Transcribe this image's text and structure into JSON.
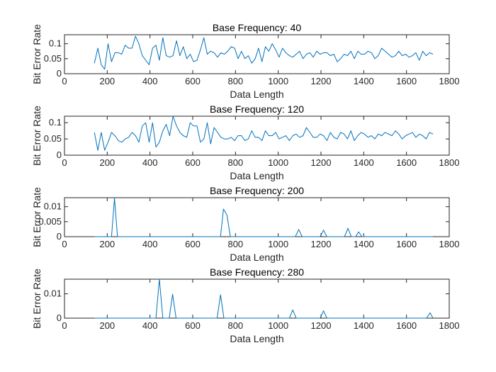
{
  "chart_data": [
    {
      "type": "line",
      "title": "Base Frequency: 40",
      "xlabel": "Data Length",
      "ylabel": "Bit Error Rate",
      "xlim": [
        0,
        1800
      ],
      "ylim": [
        0,
        0.13
      ],
      "xticks": [
        0,
        200,
        400,
        600,
        800,
        1000,
        1200,
        1400,
        1600,
        1800
      ],
      "xtick_labels": [
        "0",
        "200",
        "400",
        "600",
        "800",
        "1000",
        "1200",
        "1400",
        "1600",
        "1800"
      ],
      "yticks": [
        0,
        0.05,
        0.1
      ],
      "ytick_labels": [
        "0",
        "0.05",
        "0.1"
      ],
      "color": "#0072BD",
      "series": [
        {
          "x": [
            140,
            156,
            172,
            188,
            204,
            220,
            236,
            252,
            268,
            284,
            300,
            316,
            332,
            348,
            364,
            380,
            396,
            412,
            428,
            444,
            460,
            476,
            492,
            508,
            524,
            540,
            556,
            572,
            588,
            604,
            620,
            636,
            652,
            668,
            684,
            700,
            716,
            732,
            748,
            764,
            780,
            796,
            812,
            828,
            844,
            860,
            876,
            892,
            908,
            924,
            940,
            956,
            972,
            988,
            1004,
            1020,
            1036,
            1052,
            1068,
            1084,
            1100,
            1116,
            1132,
            1148,
            1164,
            1180,
            1196,
            1212,
            1228,
            1244,
            1260,
            1276,
            1292,
            1308,
            1324,
            1340,
            1356,
            1372,
            1388,
            1404,
            1420,
            1436,
            1452,
            1468,
            1484,
            1500,
            1516,
            1532,
            1548,
            1564,
            1580,
            1596,
            1612,
            1628,
            1644,
            1660,
            1676,
            1692,
            1708,
            1724
          ],
          "values": [
            0.035,
            0.085,
            0.03,
            0.015,
            0.1,
            0.04,
            0.07,
            0.07,
            0.065,
            0.095,
            0.085,
            0.085,
            0.125,
            0.1,
            0.06,
            0.045,
            0.03,
            0.085,
            0.095,
            0.045,
            0.12,
            0.06,
            0.055,
            0.06,
            0.11,
            0.06,
            0.09,
            0.05,
            0.065,
            0.04,
            0.045,
            0.08,
            0.12,
            0.065,
            0.075,
            0.07,
            0.055,
            0.07,
            0.065,
            0.075,
            0.09,
            0.085,
            0.05,
            0.075,
            0.05,
            0.06,
            0.035,
            0.05,
            0.085,
            0.04,
            0.09,
            0.075,
            0.1,
            0.08,
            0.055,
            0.085,
            0.07,
            0.06,
            0.055,
            0.065,
            0.075,
            0.05,
            0.065,
            0.07,
            0.055,
            0.075,
            0.065,
            0.07,
            0.07,
            0.06,
            0.065,
            0.04,
            0.05,
            0.065,
            0.06,
            0.075,
            0.05,
            0.075,
            0.065,
            0.065,
            0.075,
            0.07,
            0.05,
            0.06,
            0.085,
            0.075,
            0.065,
            0.055,
            0.06,
            0.075,
            0.06,
            0.065,
            0.055,
            0.06,
            0.07,
            0.045,
            0.075,
            0.06,
            0.07,
            0.065
          ]
        }
      ]
    },
    {
      "type": "line",
      "title": "Base Frequency: 120",
      "xlabel": "Data Length",
      "ylabel": "Bit Error Rate",
      "xlim": [
        0,
        1800
      ],
      "ylim": [
        0,
        0.12
      ],
      "xticks": [
        0,
        200,
        400,
        600,
        800,
        1000,
        1200,
        1400,
        1600,
        1800
      ],
      "xtick_labels": [
        "0",
        "200",
        "400",
        "600",
        "800",
        "1000",
        "1200",
        "1400",
        "1600",
        "1800"
      ],
      "yticks": [
        0,
        0.05,
        0.1
      ],
      "ytick_labels": [
        "0",
        "0.05",
        "0.1"
      ],
      "color": "#0072BD",
      "series": [
        {
          "x": [
            140,
            156,
            172,
            188,
            204,
            220,
            236,
            252,
            268,
            284,
            300,
            316,
            332,
            348,
            364,
            380,
            396,
            412,
            428,
            444,
            460,
            476,
            492,
            508,
            524,
            540,
            556,
            572,
            588,
            604,
            620,
            636,
            652,
            668,
            684,
            700,
            716,
            732,
            748,
            764,
            780,
            796,
            812,
            828,
            844,
            860,
            876,
            892,
            908,
            924,
            940,
            956,
            972,
            988,
            1004,
            1020,
            1036,
            1052,
            1068,
            1084,
            1100,
            1116,
            1132,
            1148,
            1164,
            1180,
            1196,
            1212,
            1228,
            1244,
            1260,
            1276,
            1292,
            1308,
            1324,
            1340,
            1356,
            1372,
            1388,
            1404,
            1420,
            1436,
            1452,
            1468,
            1484,
            1500,
            1516,
            1532,
            1548,
            1564,
            1580,
            1596,
            1612,
            1628,
            1644,
            1660,
            1676,
            1692,
            1708,
            1724
          ],
          "values": [
            0.07,
            0.015,
            0.07,
            0.015,
            0.04,
            0.07,
            0.06,
            0.045,
            0.04,
            0.05,
            0.055,
            0.07,
            0.06,
            0.04,
            0.09,
            0.1,
            0.04,
            0.1,
            0.025,
            0.04,
            0.075,
            0.095,
            0.06,
            0.12,
            0.09,
            0.07,
            0.06,
            0.055,
            0.1,
            0.09,
            0.09,
            0.04,
            0.05,
            0.1,
            0.035,
            0.085,
            0.07,
            0.055,
            0.05,
            0.05,
            0.055,
            0.045,
            0.06,
            0.06,
            0.045,
            0.05,
            0.075,
            0.055,
            0.055,
            0.045,
            0.075,
            0.06,
            0.06,
            0.07,
            0.05,
            0.055,
            0.06,
            0.045,
            0.06,
            0.065,
            0.055,
            0.06,
            0.085,
            0.07,
            0.055,
            0.055,
            0.065,
            0.06,
            0.045,
            0.07,
            0.055,
            0.05,
            0.07,
            0.065,
            0.05,
            0.075,
            0.045,
            0.06,
            0.07,
            0.065,
            0.055,
            0.06,
            0.05,
            0.065,
            0.06,
            0.07,
            0.065,
            0.06,
            0.075,
            0.065,
            0.05,
            0.06,
            0.065,
            0.07,
            0.055,
            0.065,
            0.06,
            0.05,
            0.07,
            0.065
          ]
        }
      ]
    },
    {
      "type": "line",
      "title": "Base Frequency: 200",
      "xlabel": "Data Length",
      "ylabel": "Bit Error Rate",
      "xlim": [
        0,
        1800
      ],
      "ylim": [
        0,
        0.013
      ],
      "xticks": [
        0,
        200,
        400,
        600,
        800,
        1000,
        1200,
        1400,
        1600,
        1800
      ],
      "xtick_labels": [
        "0",
        "200",
        "400",
        "600",
        "800",
        "1000",
        "1200",
        "1400",
        "1600",
        "1800"
      ],
      "yticks": [
        0,
        0.005,
        0.01
      ],
      "ytick_labels": [
        "0",
        "0.005",
        "0.01"
      ],
      "color": "#0072BD",
      "series": [
        {
          "x": [
            140,
            220,
            234,
            248,
            730,
            744,
            760,
            776,
            1080,
            1096,
            1112,
            1196,
            1212,
            1228,
            1310,
            1326,
            1342,
            1362,
            1376,
            1392,
            1724
          ],
          "values": [
            0,
            0,
            0.0128,
            0,
            0,
            0.0092,
            0.0072,
            0,
            0,
            0.0024,
            0,
            0,
            0.0022,
            0,
            0,
            0.0028,
            0,
            0,
            0.0016,
            0,
            0
          ]
        }
      ]
    },
    {
      "type": "line",
      "title": "Base Frequency: 280",
      "xlabel": "Data Length",
      "ylabel": "Bit Error Rate",
      "xlim": [
        0,
        1800
      ],
      "ylim": [
        0,
        0.016
      ],
      "xticks": [
        0,
        200,
        400,
        600,
        800,
        1000,
        1200,
        1400,
        1600,
        1800
      ],
      "xtick_labels": [
        "0",
        "200",
        "400",
        "600",
        "800",
        "1000",
        "1200",
        "1400",
        "1600",
        "1800"
      ],
      "yticks": [
        0,
        0.01
      ],
      "ytick_labels": [
        "0",
        "0.01"
      ],
      "color": "#0072BD",
      "series": [
        {
          "x": [
            140,
            428,
            444,
            460,
            490,
            506,
            522,
            714,
            730,
            746,
            1052,
            1068,
            1084,
            1196,
            1212,
            1228,
            1694,
            1710,
            1724
          ],
          "values": [
            0,
            0,
            0.016,
            0,
            0,
            0.0098,
            0,
            0,
            0.0096,
            0,
            0,
            0.0034,
            0,
            0,
            0.003,
            0,
            0,
            0.0022,
            0
          ]
        }
      ]
    }
  ]
}
